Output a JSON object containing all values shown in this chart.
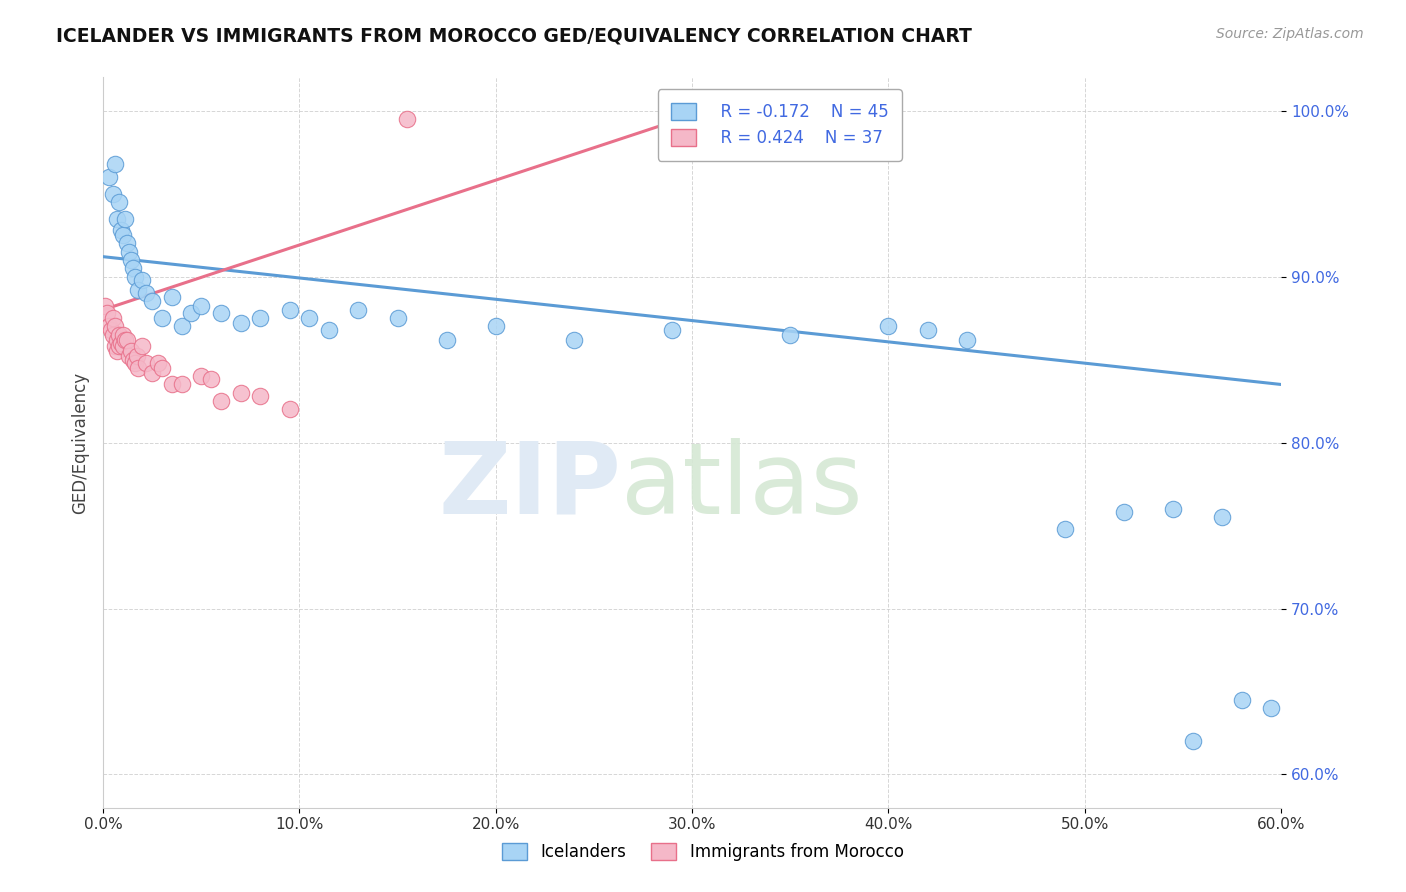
{
  "title": "ICELANDER VS IMMIGRANTS FROM MOROCCO GED/EQUIVALENCY CORRELATION CHART",
  "source": "Source: ZipAtlas.com",
  "xlim": [
    0.0,
    0.6
  ],
  "ylim": [
    0.58,
    1.02
  ],
  "ytick_labels": [
    "60.0%",
    "70.0%",
    "80.0%",
    "90.0%",
    "100.0%"
  ],
  "ytick_values": [
    0.6,
    0.7,
    0.8,
    0.9,
    1.0
  ],
  "xtick_labels": [
    "0.0%",
    "10.0%",
    "20.0%",
    "30.0%",
    "40.0%",
    "50.0%",
    "60.0%"
  ],
  "xtick_values": [
    0.0,
    0.1,
    0.2,
    0.3,
    0.4,
    0.5,
    0.6
  ],
  "legend_r1": "R = -0.172",
  "legend_n1": "N = 45",
  "legend_r2": "R = 0.424",
  "legend_n2": "N = 37",
  "color_blue": "#a8d4f5",
  "color_pink": "#f5b8c8",
  "color_blue_line": "#5b9bd5",
  "color_pink_line": "#e8708a",
  "color_blue_text": "#4169E1",
  "icelanders_x": [
    0.003,
    0.005,
    0.006,
    0.007,
    0.008,
    0.009,
    0.01,
    0.011,
    0.012,
    0.013,
    0.014,
    0.015,
    0.016,
    0.018,
    0.02,
    0.022,
    0.025,
    0.03,
    0.035,
    0.04,
    0.045,
    0.05,
    0.06,
    0.07,
    0.08,
    0.095,
    0.105,
    0.115,
    0.13,
    0.15,
    0.175,
    0.2,
    0.24,
    0.29,
    0.35,
    0.4,
    0.42,
    0.44,
    0.49,
    0.52,
    0.545,
    0.57,
    0.555,
    0.58,
    0.595
  ],
  "icelanders_y": [
    0.96,
    0.95,
    0.968,
    0.935,
    0.945,
    0.928,
    0.925,
    0.935,
    0.92,
    0.915,
    0.91,
    0.905,
    0.9,
    0.892,
    0.898,
    0.89,
    0.885,
    0.875,
    0.888,
    0.87,
    0.878,
    0.882,
    0.878,
    0.872,
    0.875,
    0.88,
    0.875,
    0.868,
    0.88,
    0.875,
    0.862,
    0.87,
    0.862,
    0.868,
    0.865,
    0.87,
    0.868,
    0.862,
    0.748,
    0.758,
    0.76,
    0.755,
    0.62,
    0.645,
    0.64
  ],
  "morocco_x": [
    0.001,
    0.002,
    0.003,
    0.004,
    0.005,
    0.005,
    0.006,
    0.006,
    0.007,
    0.007,
    0.008,
    0.008,
    0.009,
    0.01,
    0.01,
    0.011,
    0.012,
    0.013,
    0.014,
    0.015,
    0.016,
    0.017,
    0.018,
    0.02,
    0.022,
    0.025,
    0.028,
    0.03,
    0.035,
    0.04,
    0.05,
    0.055,
    0.06,
    0.07,
    0.08,
    0.095,
    0.155
  ],
  "morocco_y": [
    0.882,
    0.878,
    0.87,
    0.868,
    0.875,
    0.865,
    0.858,
    0.87,
    0.862,
    0.855,
    0.865,
    0.858,
    0.86,
    0.858,
    0.865,
    0.862,
    0.862,
    0.852,
    0.855,
    0.85,
    0.848,
    0.852,
    0.845,
    0.858,
    0.848,
    0.842,
    0.848,
    0.845,
    0.835,
    0.835,
    0.84,
    0.838,
    0.825,
    0.83,
    0.828,
    0.82,
    0.995
  ],
  "blue_trend_x": [
    0.0,
    0.6
  ],
  "blue_trend_y": [
    0.912,
    0.835
  ],
  "pink_trend_x": [
    0.0,
    0.32
  ],
  "pink_trend_y": [
    0.88,
    1.005
  ]
}
